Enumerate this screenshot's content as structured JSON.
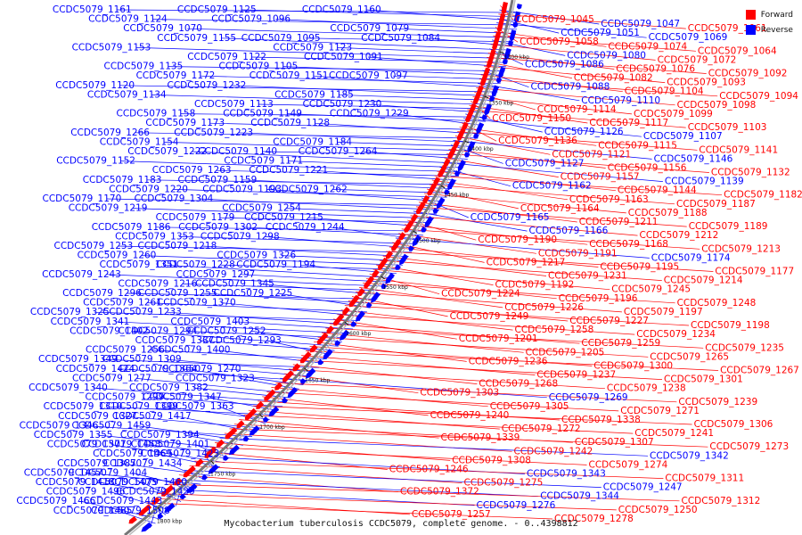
{
  "caption": "Mycobacterium tuberculosis CCDC5079, complete genome. - 0..4398812",
  "legend": [
    {
      "label": "Forward",
      "color": "#ff0000"
    },
    {
      "label": "Reverse",
      "color": "#0000ff"
    }
  ],
  "colors": {
    "forward": "#ff0000",
    "reverse": "#0000ff",
    "backbone": "#777777"
  },
  "tick_labels": [
    "1300 kbp",
    "1350 kbp",
    "1400 kbp",
    "1450 kbp",
    "1500 kbp",
    "1550 kbp",
    "1600 kbp",
    "1650 kbp",
    "1700 kbp",
    "1750 kbp",
    "1800 kbp"
  ],
  "left_labels": [
    "CCDC5079_1161",
    "CCDC5079_1125",
    "CCDC5079_1160",
    "CCDC5079_1124",
    "CCDC5079_1096",
    "CCDC5079_1079",
    "CCDC5079_1070",
    "CCDC5079_1095",
    "CCDC5079_1084",
    "CCDC5079_1155",
    "CCDC5079_1123",
    "CCDC5079_1153",
    "CCDC5079_1122",
    "CCDC5079_1091",
    "CCDC5079_1135",
    "CCDC5079_1105",
    "CCDC5079_1097",
    "CCDC5079_1172",
    "CCDC5079_1151",
    "CCDC5079_1120",
    "CCDC5079_1232",
    "CCDC5079_1185",
    "CCDC5079_1134",
    "CCDC5079_1113",
    "CCDC5079_1230",
    "CCDC5079_1158",
    "CCDC5079_1149",
    "CCDC5079_1229",
    "CCDC5079_1173",
    "CCDC5079_1128",
    "CCDC5079_1266",
    "CCDC5079_1223",
    "CCDC5079_1184",
    "CCDC5079_1154",
    "CCDC5079_1140",
    "CCDC5079_1264",
    "CCDC5079_1222",
    "CCDC5079_1171",
    "CCDC5079_1152",
    "CCDC5079_1263",
    "CCDC5079_1221",
    "CCDC5079_1183",
    "CCDC5079_1159",
    "CCDC5079_1262",
    "CCDC5079_1220",
    "CCDC5079_1193",
    "CCDC5079_1170",
    "CCDC5079_1304",
    "CCDC5079_1254",
    "CCDC5079_1219",
    "CCDC5079_1179",
    "CCDC5079_1215",
    "CCDC5079_1186",
    "CCDC5079_1302",
    "CCDC5079_1244",
    "CCDC5079_1353",
    "CCDC5079_1298",
    "CCDC5079_1253",
    "CCDC5079_1218",
    "CCDC5079_1326",
    "CCDC5079_1260",
    "CCDC5079_1228",
    "CCDC5079_1194",
    "CCDC5079_1351",
    "CCDC5079_1297",
    "CCDC5079_1243",
    "CCDC5079_1216",
    "CCDC5079_1345",
    "CCDC5079_1296",
    "CCDC5079_1255",
    "CCDC5079_1225",
    "CCDC5079_1261",
    "CCDC5079_1370",
    "CCDC5079_1325",
    "CCDC5079_1233",
    "CCDC5079_1403",
    "CCDC5079_1341",
    "CCDC5079_1294",
    "CCDC5079_1252",
    "CCDC5079_1402",
    "CCDC5079_1337",
    "CCDC5079_1293",
    "CCDC5079_1256",
    "CCDC5079_1400",
    "CCDC5079_1349",
    "CCDC5079_1309",
    "CCDC5079_1270",
    "CCDC5079_1424",
    "CCDC5079_1364",
    "CCDC5079_1323",
    "CCDC5079_1277",
    "CCDC5079_1382",
    "CCDC5079_1340",
    "CCDC5079_1299",
    "CCDC5079_1347",
    "CCDC5079_1310",
    "CCDC5079_1399",
    "CCDC5079_1363",
    "CCDC5079_1327",
    "CCDC5079_1417",
    "CCDC5079_1346",
    "CCDC5079_1459",
    "CCDC5079_1394",
    "CCDC5079_1355",
    "CCDC5079_1458",
    "CCDC5079_1401",
    "CCDC5079_1371",
    "CCDC5079_1469",
    "CCDC5079_1423",
    "CCDC5079_1387",
    "CCDC5079_1434",
    "CCDC5079_1457",
    "CCDC5079_1404",
    "CCDC5079_1460",
    "CCDC5079_1418",
    "CCDC5079_1475",
    "CCDC5079_1429",
    "CCDC5079_1496",
    "CCDC5079_1443",
    "CCDC5079_1466",
    "CCDC5079_1485",
    "CCDC5079_1508"
  ],
  "right_labels": [
    {
      "text": "CCDC5079_1045",
      "strand": "forward"
    },
    {
      "text": "CCDC5079_1047",
      "strand": "reverse"
    },
    {
      "text": "CCDC5079_1061",
      "strand": "forward"
    },
    {
      "text": "CCDC5079_1051",
      "strand": "reverse"
    },
    {
      "text": "CCDC5079_1069",
      "strand": "reverse"
    },
    {
      "text": "CCDC5079_1058",
      "strand": "forward"
    },
    {
      "text": "CCDC5079_1074",
      "strand": "forward"
    },
    {
      "text": "CCDC5079_1064",
      "strand": "forward"
    },
    {
      "text": "CCDC5079_1080",
      "strand": "reverse"
    },
    {
      "text": "CCDC5079_1072",
      "strand": "forward"
    },
    {
      "text": "CCDC5079_1086",
      "strand": "reverse"
    },
    {
      "text": "CCDC5079_1076",
      "strand": "forward"
    },
    {
      "text": "CCDC5079_1092",
      "strand": "forward"
    },
    {
      "text": "CCDC5079_1082",
      "strand": "forward"
    },
    {
      "text": "CCDC5079_1093",
      "strand": "forward"
    },
    {
      "text": "CCDC5079_1088",
      "strand": "reverse"
    },
    {
      "text": "CCDC5079_1104",
      "strand": "forward"
    },
    {
      "text": "CCDC5079_1094",
      "strand": "forward"
    },
    {
      "text": "CCDC5079_1110",
      "strand": "reverse"
    },
    {
      "text": "CCDC5079_1098",
      "strand": "forward"
    },
    {
      "text": "CCDC5079_1114",
      "strand": "forward"
    },
    {
      "text": "CCDC5079_1099",
      "strand": "forward"
    },
    {
      "text": "CCDC5079_1150",
      "strand": "forward"
    },
    {
      "text": "CCDC5079_1117",
      "strand": "forward"
    },
    {
      "text": "CCDC5079_1103",
      "strand": "forward"
    },
    {
      "text": "CCDC5079_1126",
      "strand": "reverse"
    },
    {
      "text": "CCDC5079_1107",
      "strand": "reverse"
    },
    {
      "text": "CCDC5079_1136",
      "strand": "forward"
    },
    {
      "text": "CCDC5079_1115",
      "strand": "forward"
    },
    {
      "text": "CCDC5079_1141",
      "strand": "forward"
    },
    {
      "text": "CCDC5079_1121",
      "strand": "forward"
    },
    {
      "text": "CCDC5079_1146",
      "strand": "reverse"
    },
    {
      "text": "CCDC5079_1127",
      "strand": "reverse"
    },
    {
      "text": "CCDC5079_1156",
      "strand": "forward"
    },
    {
      "text": "CCDC5079_1132",
      "strand": "forward"
    },
    {
      "text": "CCDC5079_1157",
      "strand": "forward"
    },
    {
      "text": "CCDC5079_1139",
      "strand": "reverse"
    },
    {
      "text": "CCDC5079_1162",
      "strand": "reverse"
    },
    {
      "text": "CCDC5079_1144",
      "strand": "forward"
    },
    {
      "text": "CCDC5079_1182",
      "strand": "forward"
    },
    {
      "text": "CCDC5079_1163",
      "strand": "forward"
    },
    {
      "text": "CCDC5079_1187",
      "strand": "forward"
    },
    {
      "text": "CCDC5079_1164",
      "strand": "forward"
    },
    {
      "text": "CCDC5079_1188",
      "strand": "forward"
    },
    {
      "text": "CCDC5079_1165",
      "strand": "reverse"
    },
    {
      "text": "CCDC5079_1211",
      "strand": "forward"
    },
    {
      "text": "CCDC5079_1189",
      "strand": "forward"
    },
    {
      "text": "CCDC5079_1166",
      "strand": "reverse"
    },
    {
      "text": "CCDC5079_1212",
      "strand": "forward"
    },
    {
      "text": "CCDC5079_1190",
      "strand": "forward"
    },
    {
      "text": "CCDC5079_1168",
      "strand": "forward"
    },
    {
      "text": "CCDC5079_1213",
      "strand": "forward"
    },
    {
      "text": "CCDC5079_1191",
      "strand": "forward"
    },
    {
      "text": "CCDC5079_1174",
      "strand": "reverse"
    },
    {
      "text": "CCDC5079_1217",
      "strand": "forward"
    },
    {
      "text": "CCDC5079_1195",
      "strand": "forward"
    },
    {
      "text": "CCDC5079_1177",
      "strand": "forward"
    },
    {
      "text": "CCDC5079_1231",
      "strand": "forward"
    },
    {
      "text": "CCDC5079_1214",
      "strand": "forward"
    },
    {
      "text": "CCDC5079_1192",
      "strand": "forward"
    },
    {
      "text": "CCDC5079_1245",
      "strand": "forward"
    },
    {
      "text": "CCDC5079_1224",
      "strand": "forward"
    },
    {
      "text": "CCDC5079_1196",
      "strand": "forward"
    },
    {
      "text": "CCDC5079_1248",
      "strand": "forward"
    },
    {
      "text": "CCDC5079_1226",
      "strand": "forward"
    },
    {
      "text": "CCDC5079_1197",
      "strand": "forward"
    },
    {
      "text": "CCDC5079_1249",
      "strand": "forward"
    },
    {
      "text": "CCDC5079_1227",
      "strand": "forward"
    },
    {
      "text": "CCDC5079_1198",
      "strand": "forward"
    },
    {
      "text": "CCDC5079_1258",
      "strand": "forward"
    },
    {
      "text": "CCDC5079_1234",
      "strand": "forward"
    },
    {
      "text": "CCDC5079_1201",
      "strand": "forward"
    },
    {
      "text": "CCDC5079_1259",
      "strand": "forward"
    },
    {
      "text": "CCDC5079_1235",
      "strand": "forward"
    },
    {
      "text": "CCDC5079_1205",
      "strand": "forward"
    },
    {
      "text": "CCDC5079_1265",
      "strand": "forward"
    },
    {
      "text": "CCDC5079_1236",
      "strand": "forward"
    },
    {
      "text": "CCDC5079_1300",
      "strand": "forward"
    },
    {
      "text": "CCDC5079_1267",
      "strand": "forward"
    },
    {
      "text": "CCDC5079_1237",
      "strand": "forward"
    },
    {
      "text": "CCDC5079_1301",
      "strand": "forward"
    },
    {
      "text": "CCDC5079_1268",
      "strand": "forward"
    },
    {
      "text": "CCDC5079_1238",
      "strand": "forward"
    },
    {
      "text": "CCDC5079_1303",
      "strand": "forward"
    },
    {
      "text": "CCDC5079_1269",
      "strand": "reverse"
    },
    {
      "text": "CCDC5079_1239",
      "strand": "forward"
    },
    {
      "text": "CCDC5079_1305",
      "strand": "forward"
    },
    {
      "text": "CCDC5079_1271",
      "strand": "forward"
    },
    {
      "text": "CCDC5079_1240",
      "strand": "forward"
    },
    {
      "text": "CCDC5079_1338",
      "strand": "forward"
    },
    {
      "text": "CCDC5079_1306",
      "strand": "forward"
    },
    {
      "text": "CCDC5079_1272",
      "strand": "forward"
    },
    {
      "text": "CCDC5079_1241",
      "strand": "forward"
    },
    {
      "text": "CCDC5079_1339",
      "strand": "forward"
    },
    {
      "text": "CCDC5079_1307",
      "strand": "forward"
    },
    {
      "text": "CCDC5079_1273",
      "strand": "forward"
    },
    {
      "text": "CCDC5079_1242",
      "strand": "forward"
    },
    {
      "text": "CCDC5079_1342",
      "strand": "reverse"
    },
    {
      "text": "CCDC5079_1308",
      "strand": "forward"
    },
    {
      "text": "CCDC5079_1274",
      "strand": "forward"
    },
    {
      "text": "CCDC5079_1246",
      "strand": "forward"
    },
    {
      "text": "CCDC5079_1343",
      "strand": "reverse"
    },
    {
      "text": "CCDC5079_1311",
      "strand": "forward"
    },
    {
      "text": "CCDC5079_1275",
      "strand": "forward"
    },
    {
      "text": "CCDC5079_1247",
      "strand": "reverse"
    },
    {
      "text": "CCDC5079_1372",
      "strand": "forward"
    },
    {
      "text": "CCDC5079_1344",
      "strand": "reverse"
    },
    {
      "text": "CCDC5079_1312",
      "strand": "forward"
    },
    {
      "text": "CCDC5079_1276",
      "strand": "reverse"
    },
    {
      "text": "CCDC5079_1250",
      "strand": "forward"
    },
    {
      "text": "CCDC5079_1257",
      "strand": "forward"
    },
    {
      "text": "CCDC5079_1278",
      "strand": "forward"
    }
  ]
}
